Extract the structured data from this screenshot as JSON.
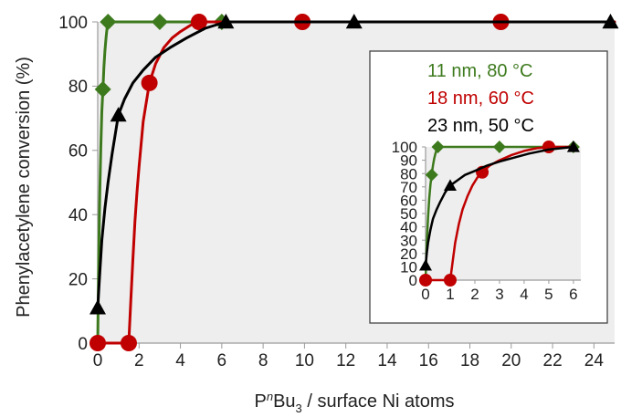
{
  "chart_data": [
    {
      "type": "line",
      "xlabel_main": "P",
      "xlabel_sup": "n",
      "xlabel_mid": "Bu",
      "xlabel_sub": "3",
      "xlabel_rest": " / surface Ni atoms",
      "ylabel": "Phenylacetylene  conversion (%)",
      "xlim": [
        0,
        25
      ],
      "ylim": [
        0,
        100
      ],
      "xticks": [
        0,
        2,
        4,
        6,
        8,
        10,
        12,
        14,
        16,
        18,
        20,
        22,
        24
      ],
      "yticks": [
        0,
        20,
        40,
        60,
        80,
        100
      ],
      "plot_background": "#eeeeee",
      "series": [
        {
          "name": "11 nm, 80 °C",
          "color": "#3d7a1d",
          "marker": "diamond",
          "x": [
            0,
            0.25,
            0.5,
            3,
            6
          ],
          "y": [
            0,
            79,
            100,
            100,
            100
          ],
          "fit_x": [
            0,
            0.05,
            0.1,
            0.15,
            0.2,
            0.25,
            0.3,
            0.35,
            0.4,
            0.45,
            0.5,
            0.6,
            0.8,
            1,
            2,
            3,
            4,
            6,
            12,
            25
          ],
          "fit_y": [
            0,
            27,
            47,
            61,
            72,
            79,
            86,
            91,
            95,
            98,
            99.5,
            100,
            100,
            100,
            100,
            100,
            100,
            100,
            100,
            100
          ]
        },
        {
          "name": "18 nm, 60 °C",
          "color": "#c00000",
          "marker": "circle",
          "x": [
            0,
            1.5,
            2.5,
            4.9,
            9.9,
            19.5
          ],
          "y": [
            0,
            0,
            81,
            100,
            100,
            100
          ],
          "fit_x": [
            0,
            1.5,
            1.6,
            1.7,
            1.8,
            1.9,
            2.0,
            2.2,
            2.5,
            2.8,
            3.2,
            3.6,
            4.0,
            4.5,
            5.0,
            6.0,
            10,
            19.5,
            25
          ],
          "fit_y": [
            0,
            0,
            13,
            26,
            38,
            47,
            55,
            69,
            81,
            87,
            92,
            95,
            97,
            99,
            100,
            100,
            100,
            100,
            100
          ]
        },
        {
          "name": "23 nm, 50 °C",
          "color": "#000000",
          "marker": "triangle",
          "x": [
            0,
            1,
            6.2,
            12.4,
            24.8
          ],
          "y": [
            11,
            71,
            100,
            100,
            100
          ],
          "fit_x": [
            0,
            0.1,
            0.2,
            0.35,
            0.5,
            0.7,
            1.0,
            1.3,
            1.7,
            2.2,
            2.8,
            3.5,
            4.3,
            5.2,
            6.2,
            8,
            12.4,
            24.8
          ],
          "fit_y": [
            11,
            22,
            32,
            42,
            50,
            59,
            71,
            76,
            81,
            85,
            89,
            92,
            95,
            98,
            100,
            100,
            100,
            100
          ]
        }
      ]
    },
    {
      "type": "line",
      "role": "inset",
      "xlim": [
        0,
        6.3
      ],
      "ylim": [
        0,
        100
      ],
      "xticks": [
        0,
        1,
        2,
        3,
        4,
        5,
        6
      ],
      "yticks": [
        0,
        10,
        20,
        30,
        40,
        50,
        60,
        70,
        80,
        90,
        100
      ],
      "plot_background": "#eeeeee",
      "series": [
        {
          "name": "11 nm, 80 °C",
          "color": "#3d7a1d",
          "marker": "diamond",
          "x": [
            0,
            0.25,
            0.5,
            3,
            6
          ],
          "y": [
            0,
            79,
            100,
            100,
            100
          ],
          "fit_x": [
            0,
            0.05,
            0.1,
            0.15,
            0.2,
            0.25,
            0.3,
            0.35,
            0.4,
            0.45,
            0.5,
            0.6,
            1,
            3,
            6
          ],
          "fit_y": [
            0,
            27,
            47,
            61,
            72,
            79,
            86,
            91,
            95,
            98,
            99.5,
            100,
            100,
            100,
            100
          ]
        },
        {
          "name": "18 nm, 60 °C",
          "color": "#c00000",
          "marker": "circle",
          "x": [
            0,
            1,
            2.3,
            5
          ],
          "y": [
            0,
            0,
            81,
            100
          ],
          "fit_x": [
            0,
            1.0,
            1.1,
            1.2,
            1.35,
            1.5,
            1.7,
            1.9,
            2.1,
            2.3,
            2.6,
            3.0,
            3.5,
            4.0,
            4.5,
            5.0,
            6.0
          ],
          "fit_y": [
            0,
            0,
            14,
            28,
            42,
            53,
            63,
            71,
            77,
            81,
            86,
            90,
            94,
            97,
            99,
            100,
            100
          ]
        },
        {
          "name": "23 nm, 50 °C",
          "color": "#000000",
          "marker": "triangle",
          "x": [
            0,
            1,
            6
          ],
          "y": [
            11,
            71,
            100
          ],
          "fit_x": [
            0,
            0.05,
            0.1,
            0.2,
            0.3,
            0.45,
            0.6,
            0.8,
            1.0,
            1.3,
            1.6,
            2.0,
            2.5,
            3.0,
            3.6,
            4.2,
            5.0,
            6.0
          ],
          "fit_y": [
            11,
            20,
            28,
            38,
            46,
            53,
            59,
            66,
            71,
            75,
            79,
            82,
            86,
            89,
            92,
            95,
            98,
            100
          ]
        }
      ]
    }
  ]
}
